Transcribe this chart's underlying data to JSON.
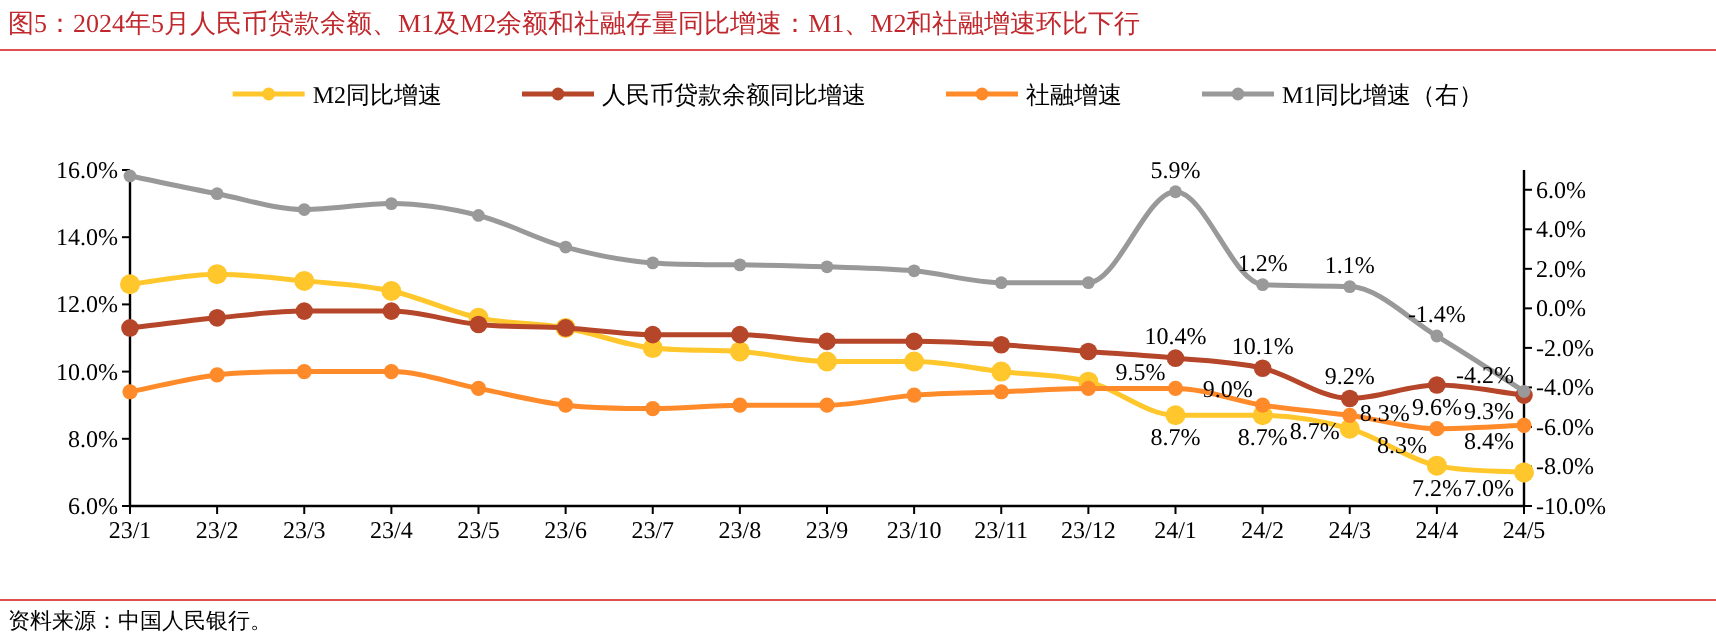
{
  "chart_data": {
    "type": "line",
    "title": "图5：2024年5月人民币贷款余额、M1及M2余额和社融存量同比增速：M1、M2和社融增速环比下行",
    "categories": [
      "23/1",
      "23/2",
      "23/3",
      "23/4",
      "23/5",
      "23/6",
      "23/7",
      "23/8",
      "23/9",
      "23/10",
      "23/11",
      "23/12",
      "24/1",
      "24/2",
      "24/3",
      "24/4",
      "24/5"
    ],
    "series": [
      {
        "name": "M2同比增速",
        "color": "#ffc72c",
        "values": [
          12.6,
          12.9,
          12.7,
          12.4,
          11.6,
          11.3,
          10.7,
          10.6,
          10.3,
          10.3,
          10.0,
          9.7,
          8.7,
          8.7,
          8.3,
          7.2,
          7.0
        ],
        "value_labels": [
          null,
          null,
          null,
          null,
          null,
          null,
          null,
          null,
          null,
          null,
          null,
          null,
          "8.7%",
          "8.7%",
          "8.3%",
          "7.2%",
          "7.0%"
        ]
      },
      {
        "name": "人民币贷款余额同比增速",
        "color": "#b5462a",
        "values": [
          11.3,
          11.6,
          11.8,
          11.8,
          11.4,
          11.3,
          11.1,
          11.1,
          10.9,
          10.9,
          10.8,
          10.6,
          10.4,
          10.1,
          9.2,
          9.6,
          9.3
        ],
        "value_labels": [
          null,
          null,
          null,
          null,
          null,
          null,
          null,
          null,
          null,
          null,
          null,
          null,
          "10.4%",
          "10.1%",
          "9.2%",
          "9.6%",
          "9.3%"
        ]
      },
      {
        "name": "社融增速",
        "color": "#ff8a2a",
        "values": [
          9.4,
          9.9,
          10.0,
          10.0,
          9.5,
          9.0,
          8.9,
          9.0,
          9.0,
          9.3,
          9.4,
          9.5,
          9.5,
          9.0,
          8.7,
          8.3,
          8.4
        ],
        "value_labels": [
          null,
          null,
          null,
          null,
          null,
          null,
          null,
          null,
          null,
          null,
          null,
          null,
          "9.5%",
          "9.0%",
          "8.7%",
          "8.3%",
          "8.4%"
        ]
      },
      {
        "name": "M1同比增速（右）",
        "color": "#999999",
        "axis": "y2",
        "values": [
          6.7,
          5.8,
          5.0,
          5.3,
          4.7,
          3.1,
          2.3,
          2.2,
          2.1,
          1.9,
          1.3,
          1.3,
          5.9,
          1.2,
          1.1,
          -1.4,
          -4.2
        ],
        "value_labels": [
          null,
          null,
          null,
          null,
          null,
          null,
          null,
          null,
          null,
          null,
          null,
          null,
          "5.9%",
          "1.2%",
          "1.1%",
          "-1.4%",
          "-4.2%"
        ]
      }
    ],
    "ylim": [
      6,
      16
    ],
    "yticks": [
      {
        "value": 6,
        "label": "6.0%"
      },
      {
        "value": 8,
        "label": "8.0%"
      },
      {
        "value": 10,
        "label": "10.0%"
      },
      {
        "value": 12,
        "label": "12.0%"
      },
      {
        "value": 14,
        "label": "14.0%"
      },
      {
        "value": 16,
        "label": "16.0%"
      }
    ],
    "y2lim": [
      -10,
      7
    ],
    "y2ticks": [
      {
        "value": -10,
        "label": "-10.0%"
      },
      {
        "value": -8,
        "label": "-8.0%"
      },
      {
        "value": -6,
        "label": "-6.0%"
      },
      {
        "value": -4,
        "label": "-4.0%"
      },
      {
        "value": -2,
        "label": "-2.0%"
      },
      {
        "value": 0,
        "label": "0.0%"
      },
      {
        "value": 2,
        "label": "2.0%"
      },
      {
        "value": 4,
        "label": "4.0%"
      },
      {
        "value": 6,
        "label": "6.0%"
      }
    ],
    "marker": "circle",
    "legend": "top",
    "grid": false,
    "annotations": [
      "资料来源：中国人民银行。"
    ]
  }
}
